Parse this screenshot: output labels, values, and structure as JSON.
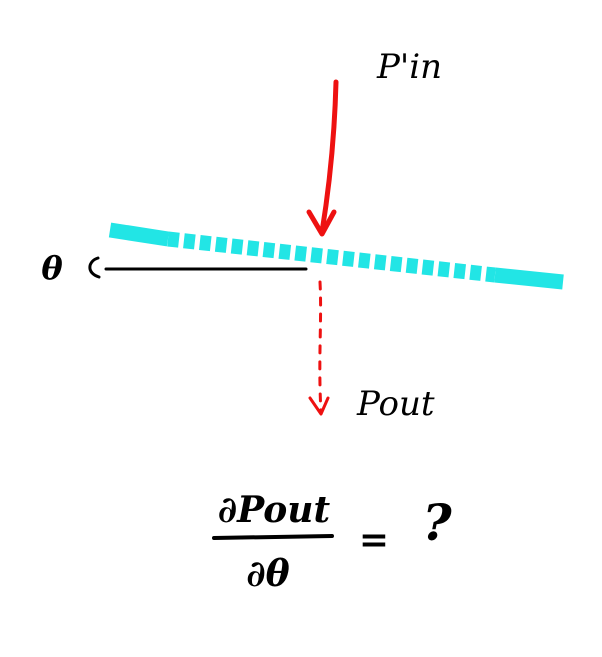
{
  "labels": {
    "p_in": "P'in",
    "p_out": "Pout",
    "theta": "θ"
  },
  "equation": {
    "numerator": "∂Pout",
    "denominator": "∂θ",
    "equals": "=",
    "result": "?"
  },
  "colors": {
    "beam": "#ee1111",
    "splitter": "#22e5e5",
    "ink": "#000000",
    "background": "#ffffff"
  }
}
